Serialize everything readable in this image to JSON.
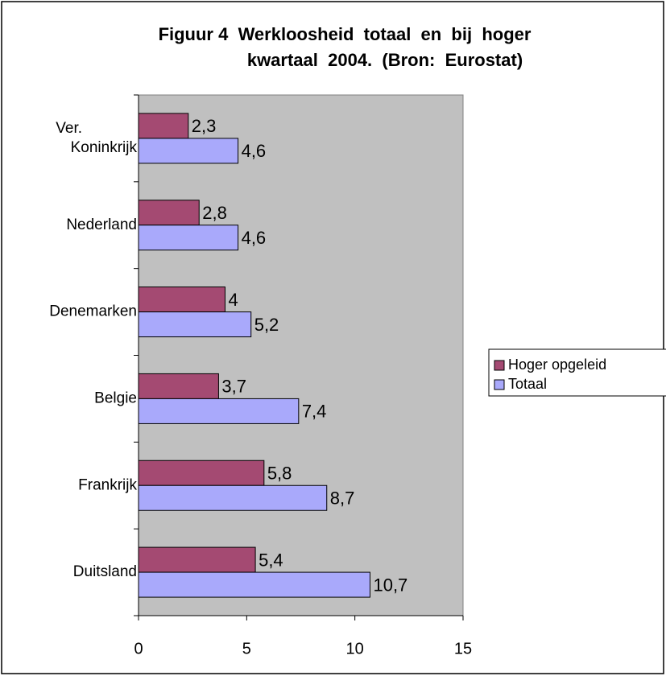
{
  "chart_data": {
    "type": "hbar",
    "title": [
      "Figuur 4  Werkloosheid  totaal  en  bij  hoger",
      "kwartaal  2004.  (Bron:  Eurostat)"
    ],
    "categories": [
      "Ver. Koninkrijk",
      "Nederland",
      "Denemarken",
      "Belgie",
      "Frankrijk",
      "Duitsland"
    ],
    "series": [
      {
        "name": "Hoger opgeleid",
        "color": "#a44a72",
        "values": [
          2.3,
          2.8,
          4,
          3.7,
          5.8,
          5.4
        ],
        "value_labels": [
          "2,3",
          "2,8",
          "4",
          "3,7",
          "5,8",
          "5,4"
        ]
      },
      {
        "name": "Totaal",
        "color": "#a9a9fb",
        "values": [
          4.6,
          4.6,
          5.2,
          7.4,
          8.7,
          10.7
        ],
        "value_labels": [
          "4,6",
          "4,6",
          "5,2",
          "7,4",
          "8,7",
          "10,7"
        ]
      }
    ],
    "xlim": [
      0,
      15
    ],
    "xticks": [
      0,
      5,
      10,
      15
    ],
    "legend": "right"
  }
}
